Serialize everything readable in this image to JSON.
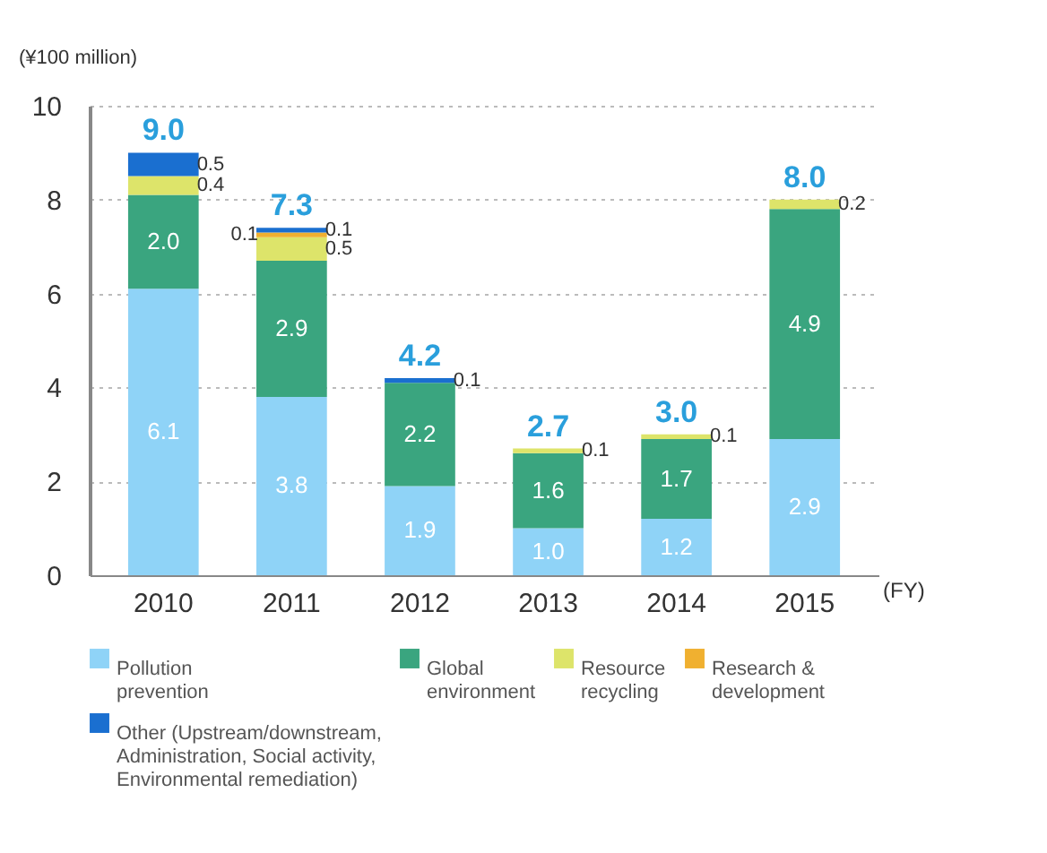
{
  "chart_data": {
    "type": "bar",
    "stacked": true,
    "ylabel": "(¥100 million)",
    "xlabel": "(FY)",
    "categories": [
      "2010",
      "2011",
      "2012",
      "2013",
      "2014",
      "2015"
    ],
    "series": [
      {
        "name": "Pollution prevention",
        "color": "#8fd3f7",
        "values": [
          6.1,
          3.8,
          1.9,
          1.0,
          1.2,
          2.9
        ],
        "value_labels": [
          "6.1",
          "3.8",
          "1.9",
          "1.0",
          "1.2",
          "2.9"
        ]
      },
      {
        "name": "Global environment",
        "color": "#3aa57f",
        "values": [
          2.0,
          2.9,
          2.2,
          1.6,
          1.7,
          4.9
        ],
        "value_labels": [
          "2.0",
          "2.9",
          "2.2",
          "1.6",
          "1.7",
          "4.9"
        ]
      },
      {
        "name": "Resource recycling",
        "color": "#dde46a",
        "values": [
          0.4,
          0.5,
          null,
          0.1,
          0.1,
          0.2
        ],
        "value_labels": [
          "0.4",
          "0.5",
          null,
          "0.1",
          "0.1",
          "0.2"
        ]
      },
      {
        "name": "Research & development",
        "color": "#f0b030",
        "values": [
          null,
          0.1,
          null,
          null,
          null,
          null
        ],
        "value_labels": [
          null,
          "0.1",
          null,
          null,
          null,
          null
        ]
      },
      {
        "name": "Other (Upstream/downstream, Administration, Social activity, Environmental remediation)",
        "color": "#1a6fd0",
        "values": [
          0.5,
          0.1,
          0.1,
          null,
          null,
          null
        ],
        "value_labels": [
          "0.5",
          "0.1",
          "0.1",
          null,
          null,
          null
        ]
      }
    ],
    "totals": [
      "9.0",
      "7.3",
      "4.2",
      "2.7",
      "3.0",
      "8.0"
    ],
    "ylim": [
      0,
      10
    ],
    "yticks": [
      0,
      2,
      4,
      6,
      8,
      10
    ],
    "grid": "y",
    "legend": "bottom"
  }
}
